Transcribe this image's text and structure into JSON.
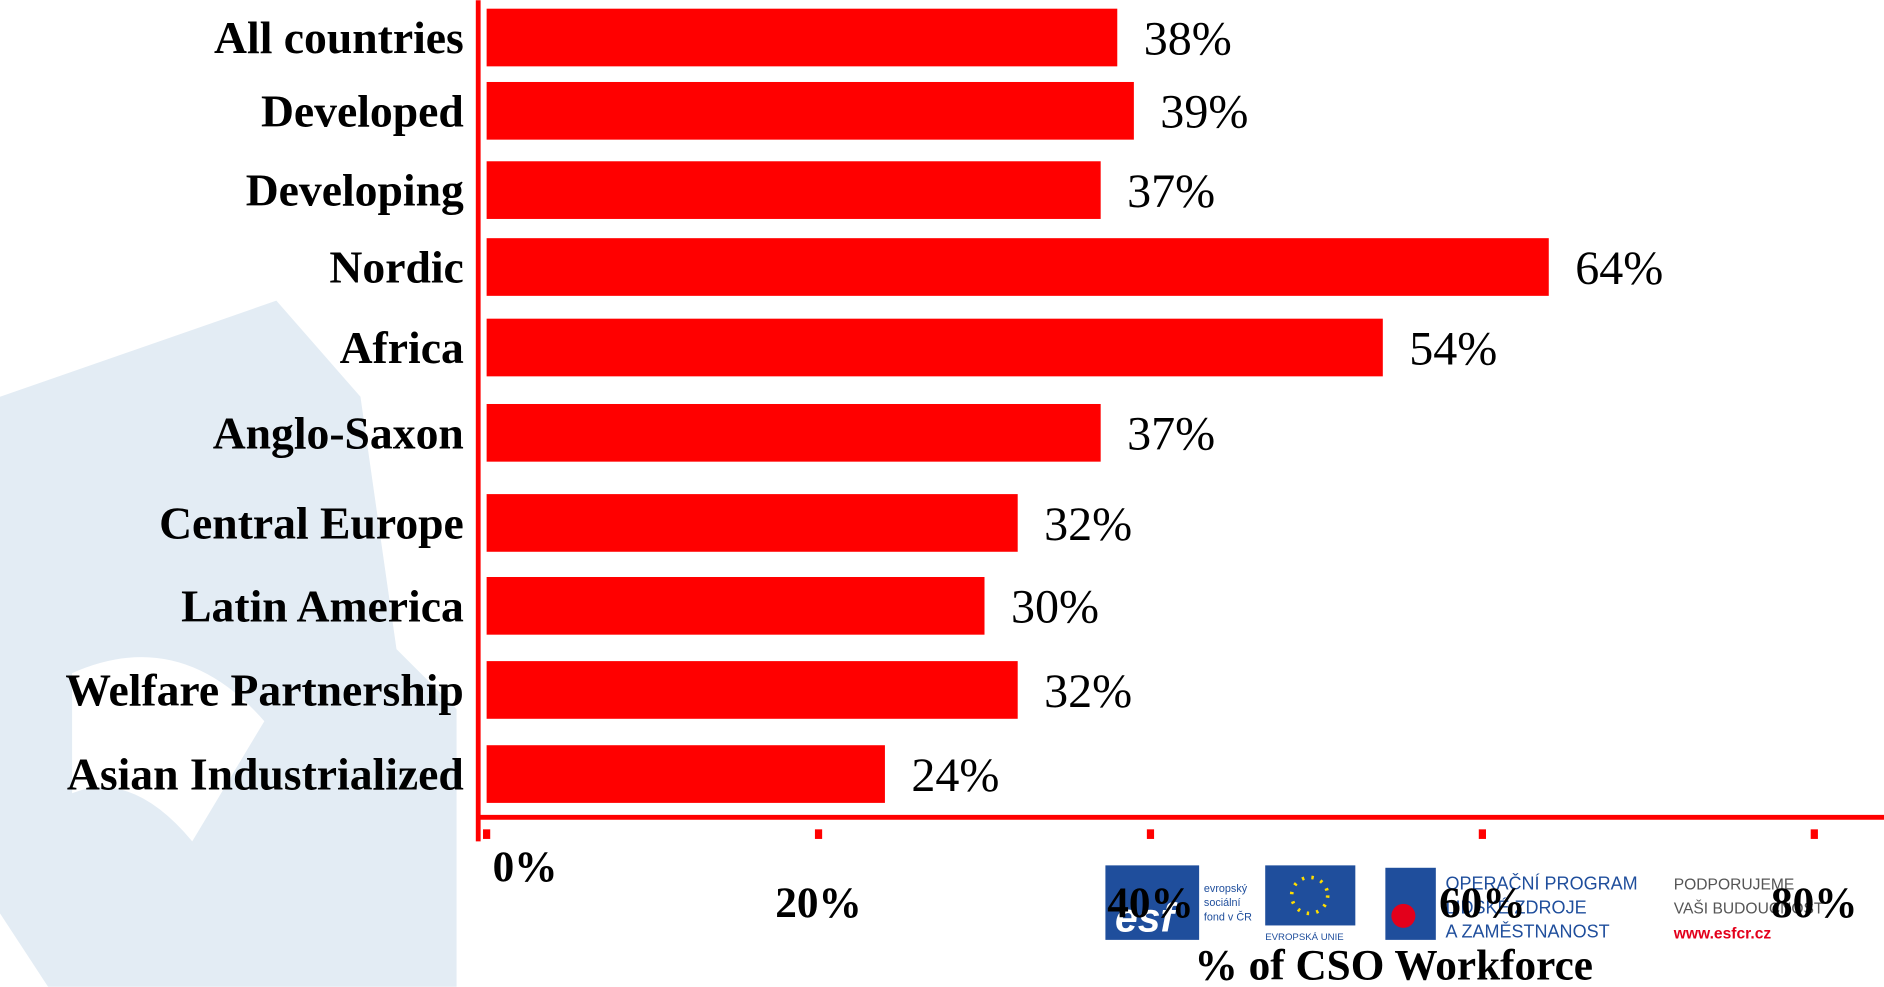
{
  "chart_data": {
    "type": "hbar",
    "categories": [
      "All countries",
      "Developed",
      "Developing",
      "Nordic",
      "Africa",
      "Anglo-Saxon",
      "Central Europe",
      "Latin America",
      "Welfare Partnership",
      "Asian Industrialized"
    ],
    "values": [
      38,
      39,
      37,
      64,
      54,
      37,
      32,
      30,
      32,
      24
    ],
    "value_labels": [
      "38%",
      "39%",
      "37%",
      "64%",
      "54%",
      "37%",
      "32%",
      "30%",
      "32%",
      "24%"
    ],
    "color": "#ff0000",
    "xlabel": "%  of CSO Workforce",
    "xlim": [
      0,
      80
    ],
    "xticks": [
      {
        "value": 0,
        "label": "0%"
      },
      {
        "value": 20,
        "label": "20%"
      },
      {
        "value": 40,
        "label": "40%"
      },
      {
        "value": 60,
        "label": "60%"
      },
      {
        "value": 80,
        "label": "80%"
      }
    ]
  },
  "logos": {
    "esf": [
      "esf",
      "evropský",
      "sociální",
      "fond v ČR"
    ],
    "eu": "EVROPSKÁ UNIE",
    "program": [
      "OPERAČNÍ PROGRAM",
      "LIDSKÉ ZDROJE",
      "A ZAMĚSTNANOST"
    ],
    "slogan": [
      "PODPORUJEME",
      "VAŠI BUDOUCNOST"
    ],
    "url": "www.esfcr.cz"
  }
}
